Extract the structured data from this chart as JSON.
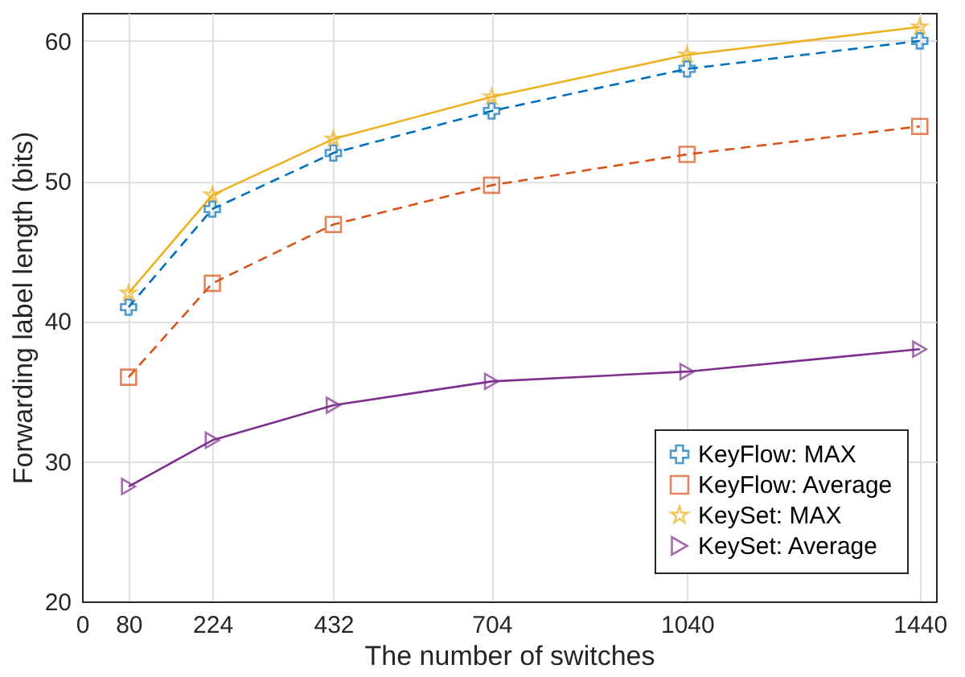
{
  "chart_data": {
    "type": "line",
    "xlabel": "The number of switches",
    "ylabel": "Forwarding label length (bits)",
    "x": [
      80,
      224,
      432,
      704,
      1040,
      1440
    ],
    "xlim": [
      0,
      1468
    ],
    "xticks": [
      0,
      80,
      224,
      432,
      704,
      1040,
      1440
    ],
    "ylim": [
      20,
      62
    ],
    "yticks": [
      20,
      30,
      40,
      50,
      60
    ],
    "grid": true,
    "legend": "bottom right",
    "series": [
      {
        "name": "KeyFlow: MAX",
        "color": "#0072bd",
        "marker": "cross",
        "line_style": "dashed",
        "values": [
          41,
          48,
          52,
          55,
          58,
          60
        ]
      },
      {
        "name": "KeyFlow: Average",
        "color": "#d95319",
        "marker": "square",
        "line_style": "dashed",
        "values": [
          36,
          42.7,
          46.9,
          49.7,
          51.9,
          53.9
        ]
      },
      {
        "name": "KeySet: MAX",
        "color": "#edb120",
        "marker": "star",
        "line_style": "solid",
        "values": [
          42,
          49,
          53,
          56,
          59,
          61
        ]
      },
      {
        "name": "KeySet: Average",
        "color": "#7e2f8e",
        "marker": "triangle",
        "line_style": "solid",
        "values": [
          28.2,
          31.5,
          34,
          35.7,
          36.4,
          38
        ]
      }
    ]
  }
}
